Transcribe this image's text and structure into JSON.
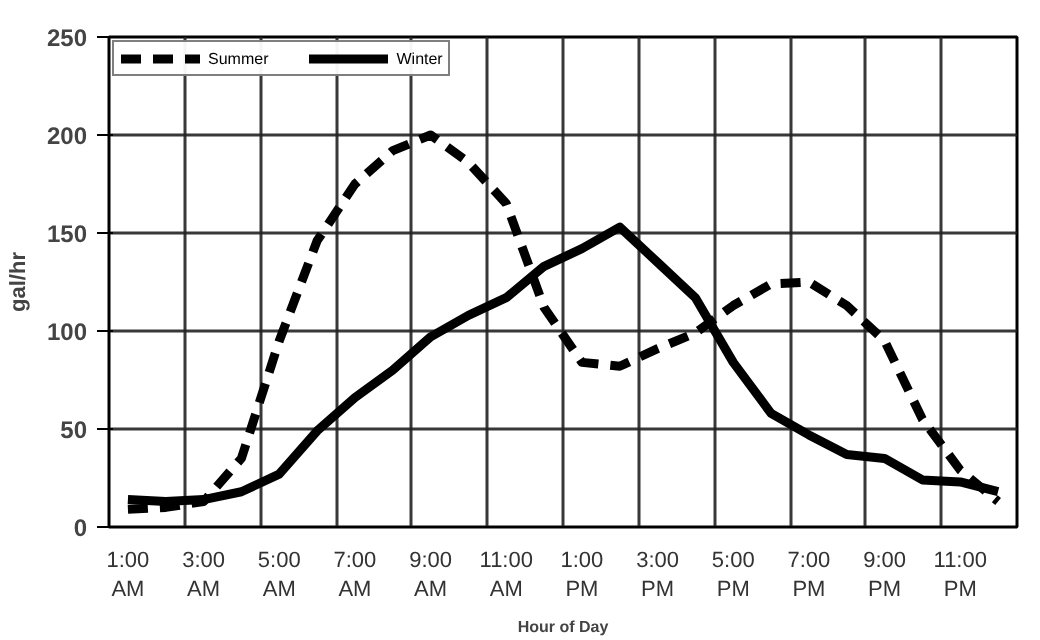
{
  "chart_data": {
    "type": "line",
    "xlabel": "Hour of Day",
    "ylabel": "gal/hr",
    "categories": [
      "1:00 AM",
      null,
      "3:00 AM",
      null,
      "5:00 AM",
      null,
      "7:00 AM",
      null,
      "9:00 AM",
      null,
      "11:00 AM",
      null,
      "1:00 PM",
      null,
      "3:00 PM",
      null,
      "5:00 PM",
      null,
      "7:00 PM",
      null,
      "9:00 PM",
      null,
      "11:00 PM",
      null
    ],
    "series": [
      {
        "name": "Summer",
        "color": "#000000",
        "line_style": "dashed",
        "values": [
          9,
          10,
          13,
          35,
          95,
          146,
          175,
          192,
          200,
          186,
          165,
          112,
          84,
          82,
          91,
          99,
          113,
          124,
          125,
          113,
          95,
          55,
          29,
          13
        ]
      },
      {
        "name": "Winter",
        "color": "#000000",
        "line_style": "solid",
        "values": [
          14,
          13,
          14,
          18,
          27,
          49,
          66,
          80,
          97,
          108,
          117,
          133,
          142,
          153,
          135,
          117,
          84,
          58,
          47,
          37,
          35,
          24,
          23,
          18
        ]
      }
    ],
    "ylim": [
      0,
      250
    ],
    "yticks": [
      0,
      50,
      100,
      150,
      200,
      250
    ],
    "grid": true,
    "legend": "top left"
  }
}
